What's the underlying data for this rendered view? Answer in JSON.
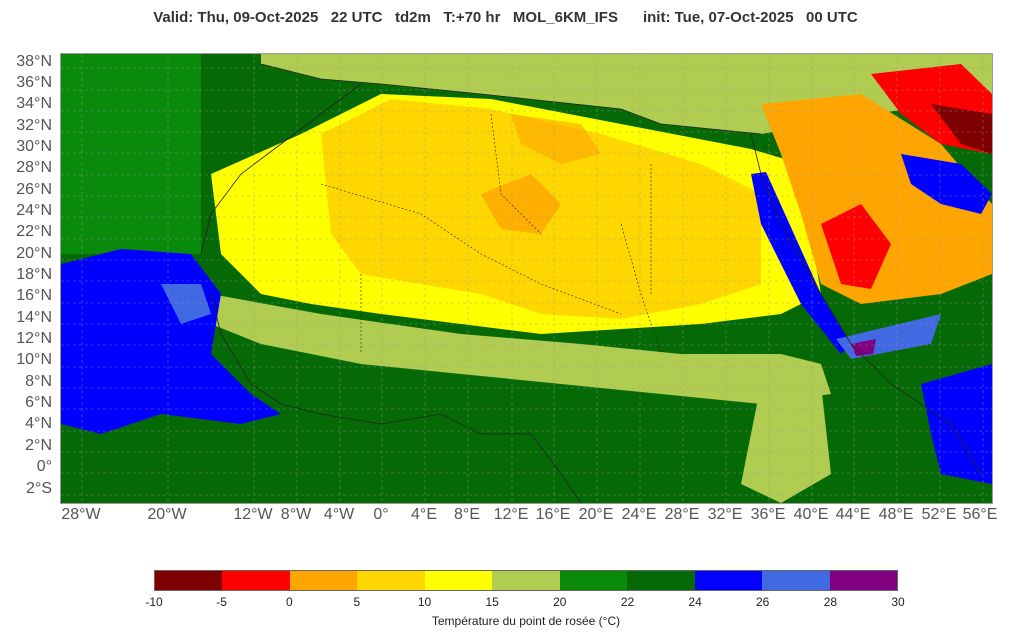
{
  "header": {
    "title": "Valid: Thu, 09-Oct-2025   22 UTC   td2m   T:+70 hr   MOL_6KM_IFS      init: Tue, 07-Oct-2025   00 UTC"
  },
  "map": {
    "variable": "td2m",
    "lat_labels": [
      "38°N",
      "36°N",
      "34°N",
      "32°N",
      "30°N",
      "28°N",
      "26°N",
      "24°N",
      "22°N",
      "20°N",
      "18°N",
      "16°N",
      "14°N",
      "12°N",
      "10°N",
      "8°N",
      "6°N",
      "4°N",
      "2°N",
      "0°",
      "2°S"
    ],
    "lon_labels": [
      "28°W",
      "20°W",
      "12°W",
      "8°W",
      "4°W",
      "0°",
      "4°E",
      "8°E",
      "12°E",
      "16°E",
      "20°E",
      "24°E",
      "28°E",
      "32°E",
      "36°E",
      "40°E",
      "44°E",
      "48°E",
      "52°E",
      "56°E"
    ],
    "colors": {
      "c_lt_m5": "#7f0000",
      "c_m5_0": "#ff0000",
      "c_0_5": "#ffa500",
      "c_5_10": "#ffd700",
      "c_10_15": "#ffff00",
      "c_15_20": "#b0cd52",
      "c_20_22": "#0a8a0a",
      "c_22_24": "#056a05",
      "c_24_26": "#0000ff",
      "c_26_28": "#4169e1",
      "c_28_30": "#800080",
      "sea_border": "#000000"
    }
  },
  "legend": {
    "colors": [
      "#7f0000",
      "#ff0000",
      "#ffa500",
      "#ffd700",
      "#ffff00",
      "#b0cd52",
      "#0a8a0a",
      "#056a05",
      "#0000ff",
      "#4169e1",
      "#800080"
    ],
    "ticks": [
      "-10",
      "-5",
      "0",
      "5",
      "10",
      "15",
      "20",
      "22",
      "24",
      "26",
      "28",
      "30"
    ],
    "caption": "Température du point de rosée (°C)"
  }
}
